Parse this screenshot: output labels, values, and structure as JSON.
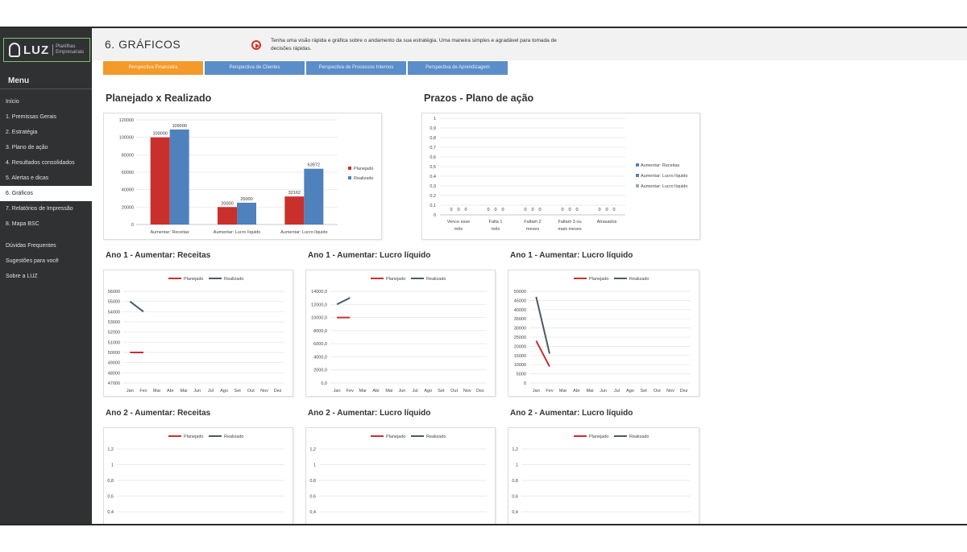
{
  "sidebar": {
    "logo_name": "LUZ",
    "logo_sub": "Planilhas Empresariais",
    "menu_title": "Menu",
    "items": [
      {
        "label": "Início"
      },
      {
        "label": "1. Premissas Gerais"
      },
      {
        "label": "2. Estratégia"
      },
      {
        "label": "3. Plano de ação"
      },
      {
        "label": "4. Resultados consolidados"
      },
      {
        "label": "5. Alertas e dicas"
      },
      {
        "label": "6. Gráficos",
        "active": true
      },
      {
        "label": "7. Relatórios de Impressão"
      },
      {
        "label": "8. Mapa BSC"
      },
      {
        "label": "Dúvidas Frequentes"
      },
      {
        "label": "Sugestões para você"
      },
      {
        "label": "Sobre a LUZ"
      }
    ]
  },
  "header": {
    "title": "6. GRÁFICOS",
    "intro": "Tenha uma visão rápida e gráfica sobre o andamento da sua estratégia. Uma maneira simples e agradável para tomada de decisões rápidas."
  },
  "tabs": [
    {
      "label": "Perspectiva Financeira",
      "active": true
    },
    {
      "label": "Perspectiva de Clientes"
    },
    {
      "label": "Perspectiva de Processos Internos"
    },
    {
      "label": "Perspectiva de Aprendizagem"
    }
  ],
  "colors": {
    "planejado": "#c9302c",
    "realizado": "#4f81bd",
    "tab_active": "#f39a2b",
    "tab": "#5b8dc9"
  },
  "chart_data": [
    {
      "type": "bar",
      "title": "Planejado x Realizado",
      "categories": [
        "Aumentar: Receitas",
        "Aumentar: Lucro líquido",
        "Aumentar: Lucro líquido"
      ],
      "series": [
        {
          "name": "Planejado",
          "values": [
            100000,
            20000,
            32162
          ]
        },
        {
          "name": "Realizado",
          "values": [
            109000,
            25000,
            63972
          ]
        }
      ],
      "ylim": [
        0,
        120000
      ],
      "yticks": [
        "0",
        "20000",
        "40000",
        "60000",
        "80000",
        "100000",
        "120000"
      ],
      "legend": "right"
    },
    {
      "type": "bar",
      "title": "Prazos - Plano de ação",
      "categories": [
        "Vence esse mês",
        "Falta 1 mês",
        "Faltam 2 meses",
        "Faltam 3 ou mais meses",
        "Atrasados"
      ],
      "series": [
        {
          "name": "Aumentar: Receitas",
          "values": [
            0,
            0,
            0,
            0,
            0
          ]
        },
        {
          "name": "Aumentar: Lucro líquido",
          "values": [
            0,
            0,
            0,
            0,
            0
          ]
        },
        {
          "name": "Aumentar: Lucro líquido",
          "values": [
            0,
            0,
            0,
            0,
            0
          ]
        }
      ],
      "ylim": [
        0,
        1
      ],
      "yticks": [
        "0",
        "0,1",
        "0,2",
        "0,3",
        "0,4",
        "0,5",
        "0,6",
        "0,7",
        "0,8",
        "0,9",
        "1"
      ],
      "legend": "right"
    },
    {
      "type": "line",
      "title": "Ano 1 - Aumentar: Receitas",
      "categories": [
        "Jan",
        "Fev",
        "Mar",
        "Abr",
        "Mai",
        "Jun",
        "Jul",
        "Ago",
        "Set",
        "Out",
        "Nov",
        "Dez"
      ],
      "series": [
        {
          "name": "Planejado",
          "values": [
            50000,
            50000,
            null,
            null,
            null,
            null,
            null,
            null,
            null,
            null,
            null,
            null
          ]
        },
        {
          "name": "Realizado",
          "values": [
            55000,
            54000,
            null,
            null,
            null,
            null,
            null,
            null,
            null,
            null,
            null,
            null
          ]
        }
      ],
      "ylim": [
        47000,
        56000
      ],
      "yticks": [
        "47000",
        "48000",
        "49000",
        "50000",
        "51000",
        "52000",
        "53000",
        "54000",
        "55000",
        "56000"
      ],
      "legend": "top"
    },
    {
      "type": "line",
      "title": "Ano 1 - Aumentar: Lucro líquido",
      "categories": [
        "Jan",
        "Fev",
        "Mar",
        "Abr",
        "Mai",
        "Jun",
        "Jul",
        "Ago",
        "Set",
        "Out",
        "Nov",
        "Dez"
      ],
      "series": [
        {
          "name": "Planejado",
          "values": [
            10000,
            10000,
            null,
            null,
            null,
            null,
            null,
            null,
            null,
            null,
            null,
            null
          ]
        },
        {
          "name": "Realizado",
          "values": [
            12000,
            13000,
            null,
            null,
            null,
            null,
            null,
            null,
            null,
            null,
            null,
            null
          ]
        }
      ],
      "ylim": [
        0,
        14000
      ],
      "yticks": [
        "0,0",
        "2000,0",
        "4000,0",
        "6000,0",
        "8000,0",
        "10000,0",
        "12000,0",
        "14000,0"
      ],
      "legend": "top"
    },
    {
      "type": "line",
      "title": "Ano 1 - Aumentar: Lucro líquido",
      "categories": [
        "Jan",
        "Fev",
        "Mar",
        "Abr",
        "Mai",
        "Jun",
        "Jul",
        "Ago",
        "Set",
        "Out",
        "Nov",
        "Dez"
      ],
      "series": [
        {
          "name": "Planejado",
          "values": [
            23000,
            9000,
            null,
            null,
            null,
            null,
            null,
            null,
            null,
            null,
            null,
            null
          ]
        },
        {
          "name": "Realizado",
          "values": [
            47000,
            16000,
            null,
            null,
            null,
            null,
            null,
            null,
            null,
            null,
            null,
            null
          ]
        }
      ],
      "ylim": [
        0,
        50000
      ],
      "yticks": [
        "0",
        "5000",
        "10000",
        "15000",
        "20000",
        "25000",
        "30000",
        "35000",
        "40000",
        "45000",
        "50000"
      ],
      "legend": "top"
    },
    {
      "type": "line",
      "title": "Ano 2 - Aumentar: Receitas",
      "categories": [],
      "series": [
        {
          "name": "Planejado",
          "values": []
        },
        {
          "name": "Realizado",
          "values": []
        }
      ],
      "ylim": [
        0,
        1.2
      ],
      "yticks": [
        "0,4",
        "0,6",
        "0,8",
        "1",
        "1,2"
      ],
      "legend": "top"
    },
    {
      "type": "line",
      "title": "Ano 2 - Aumentar: Lucro líquido",
      "categories": [],
      "series": [
        {
          "name": "Planejado",
          "values": []
        },
        {
          "name": "Realizado",
          "values": []
        }
      ],
      "ylim": [
        0,
        1.2
      ],
      "yticks": [
        "0,4",
        "0,6",
        "0,8",
        "1",
        "1,2"
      ],
      "legend": "top"
    },
    {
      "type": "line",
      "title": "Ano 2 - Aumentar: Lucro líquido",
      "categories": [],
      "series": [
        {
          "name": "Planejado",
          "values": []
        },
        {
          "name": "Realizado",
          "values": []
        }
      ],
      "ylim": [
        0,
        1.2
      ],
      "yticks": [
        "0,4",
        "0,6",
        "0,8",
        "1",
        "1,2"
      ],
      "legend": "top"
    }
  ]
}
